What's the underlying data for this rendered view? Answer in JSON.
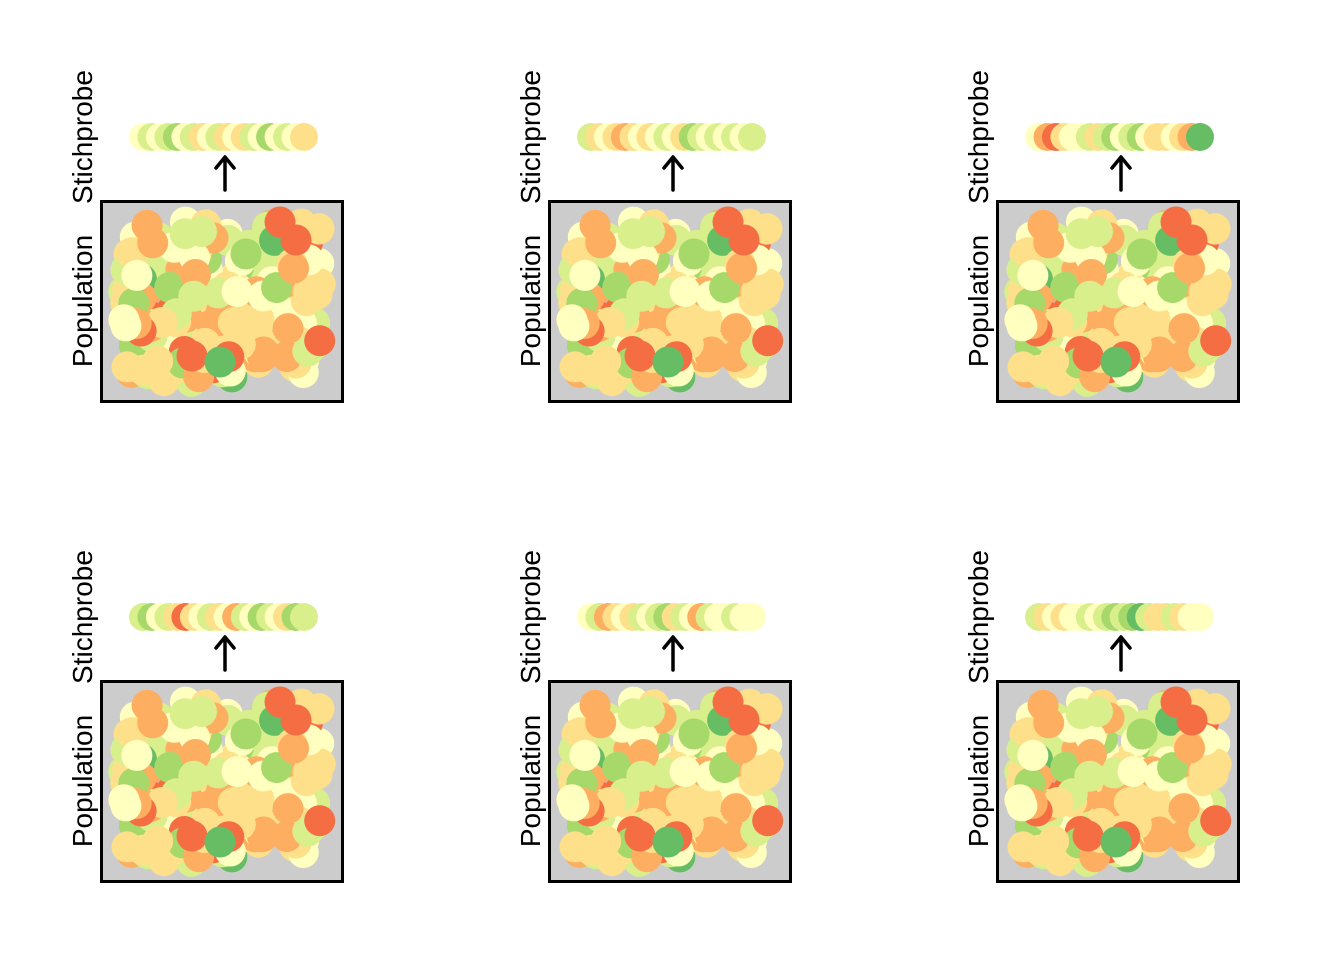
{
  "labels": {
    "sample": "Stichprobe",
    "population": "Population"
  },
  "colors": {
    "box_fill": "#cccccc",
    "box_stroke": "#000000",
    "arrow": "#000000",
    "palette": [
      "#f46d43",
      "#fdae61",
      "#fee08b",
      "#ffffbf",
      "#d9ef8b",
      "#a6d96a",
      "#66bd63"
    ]
  },
  "population": {
    "size": 200,
    "palette_weights": [
      0.03,
      0.16,
      0.28,
      0.23,
      0.22,
      0.06,
      0.02
    ]
  },
  "panels": [
    {
      "name": "panel-1",
      "sample": [
        3,
        4,
        3,
        4,
        5,
        3,
        4,
        2,
        3,
        4,
        2,
        3,
        2,
        4,
        3,
        5,
        3,
        4,
        3,
        2
      ]
    },
    {
      "name": "panel-2",
      "sample": [
        4,
        2,
        3,
        2,
        1,
        2,
        3,
        2,
        3,
        4,
        3,
        2,
        5,
        4,
        3,
        4,
        3,
        4,
        3,
        4
      ]
    },
    {
      "name": "panel-3",
      "sample": [
        3,
        1,
        0,
        2,
        3,
        3,
        4,
        2,
        4,
        5,
        3,
        4,
        5,
        3,
        2,
        2,
        3,
        2,
        1,
        6
      ]
    },
    {
      "name": "panel-4",
      "sample": [
        4,
        5,
        3,
        4,
        2,
        0,
        2,
        3,
        4,
        2,
        3,
        1,
        4,
        3,
        5,
        4,
        3,
        2,
        5,
        4
      ]
    },
    {
      "name": "panel-5",
      "sample": [
        3,
        4,
        1,
        2,
        3,
        2,
        4,
        3,
        4,
        5,
        2,
        4,
        3,
        1,
        4,
        3,
        3,
        4,
        3,
        3
      ]
    },
    {
      "name": "panel-6",
      "sample": [
        4,
        2,
        3,
        2,
        3,
        3,
        4,
        3,
        4,
        5,
        4,
        5,
        6,
        4,
        2,
        2,
        4,
        2,
        3,
        3
      ]
    }
  ]
}
